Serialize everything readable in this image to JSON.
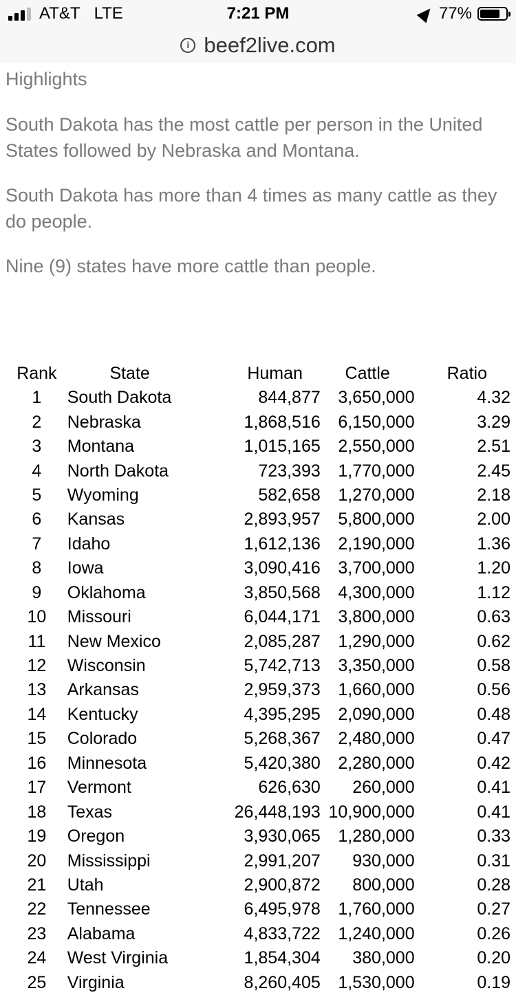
{
  "status_bar": {
    "carrier": "AT&T",
    "network": "LTE",
    "time": "7:21 PM",
    "battery_percent": "77%",
    "battery_level": 0.77
  },
  "url_bar": {
    "domain": "beef2live.com"
  },
  "article": {
    "heading": "Highlights",
    "paragraphs": [
      "South Dakota has the most cattle per person in the United States followed by Nebraska and Montana.",
      "South Dakota has more than 4 times as many cattle as they do people.",
      "Nine (9) states have more cattle than people."
    ]
  },
  "table": {
    "headers": {
      "rank": "Rank",
      "state": "State",
      "human": "Human",
      "cattle": "Cattle",
      "ratio": "Ratio"
    },
    "rows": [
      {
        "rank": "1",
        "state": "South Dakota",
        "human": "844,877",
        "cattle": "3,650,000",
        "ratio": "4.32"
      },
      {
        "rank": "2",
        "state": "Nebraska",
        "human": "1,868,516",
        "cattle": "6,150,000",
        "ratio": "3.29"
      },
      {
        "rank": "3",
        "state": "Montana",
        "human": "1,015,165",
        "cattle": "2,550,000",
        "ratio": "2.51"
      },
      {
        "rank": "4",
        "state": "North Dakota",
        "human": "723,393",
        "cattle": "1,770,000",
        "ratio": "2.45"
      },
      {
        "rank": "5",
        "state": "Wyoming",
        "human": "582,658",
        "cattle": "1,270,000",
        "ratio": "2.18"
      },
      {
        "rank": "6",
        "state": "Kansas",
        "human": "2,893,957",
        "cattle": "5,800,000",
        "ratio": "2.00"
      },
      {
        "rank": "7",
        "state": "Idaho",
        "human": "1,612,136",
        "cattle": "2,190,000",
        "ratio": "1.36"
      },
      {
        "rank": "8",
        "state": "Iowa",
        "human": "3,090,416",
        "cattle": "3,700,000",
        "ratio": "1.20"
      },
      {
        "rank": "9",
        "state": "Oklahoma",
        "human": "3,850,568",
        "cattle": "4,300,000",
        "ratio": "1.12"
      },
      {
        "rank": "10",
        "state": "Missouri",
        "human": "6,044,171",
        "cattle": "3,800,000",
        "ratio": "0.63"
      },
      {
        "rank": "11",
        "state": "New Mexico",
        "human": "2,085,287",
        "cattle": "1,290,000",
        "ratio": "0.62"
      },
      {
        "rank": "12",
        "state": "Wisconsin",
        "human": "5,742,713",
        "cattle": "3,350,000",
        "ratio": "0.58"
      },
      {
        "rank": "13",
        "state": "Arkansas",
        "human": "2,959,373",
        "cattle": "1,660,000",
        "ratio": "0.56"
      },
      {
        "rank": "14",
        "state": "Kentucky",
        "human": "4,395,295",
        "cattle": "2,090,000",
        "ratio": "0.48"
      },
      {
        "rank": "15",
        "state": "Colorado",
        "human": "5,268,367",
        "cattle": "2,480,000",
        "ratio": "0.47"
      },
      {
        "rank": "16",
        "state": "Minnesota",
        "human": "5,420,380",
        "cattle": "2,280,000",
        "ratio": "0.42"
      },
      {
        "rank": "17",
        "state": "Vermont",
        "human": "626,630",
        "cattle": "260,000",
        "ratio": "0.41"
      },
      {
        "rank": "18",
        "state": "Texas",
        "human": "26,448,193",
        "cattle": "10,900,000",
        "ratio": "0.41"
      },
      {
        "rank": "19",
        "state": "Oregon",
        "human": "3,930,065",
        "cattle": "1,280,000",
        "ratio": "0.33"
      },
      {
        "rank": "20",
        "state": "Mississippi",
        "human": "2,991,207",
        "cattle": "930,000",
        "ratio": "0.31"
      },
      {
        "rank": "21",
        "state": "Utah",
        "human": "2,900,872",
        "cattle": "800,000",
        "ratio": "0.28"
      },
      {
        "rank": "22",
        "state": "Tennessee",
        "human": "6,495,978",
        "cattle": "1,760,000",
        "ratio": "0.27"
      },
      {
        "rank": "23",
        "state": "Alabama",
        "human": "4,833,722",
        "cattle": "1,240,000",
        "ratio": "0.26"
      },
      {
        "rank": "24",
        "state": "West Virginia",
        "human": "1,854,304",
        "cattle": "380,000",
        "ratio": "0.20"
      },
      {
        "rank": "25",
        "state": "Virginia",
        "human": "8,260,405",
        "cattle": "1,530,000",
        "ratio": "0.19"
      }
    ]
  },
  "icons": {
    "signal": "signal-bars-icon",
    "location": "location-arrow-icon",
    "battery": "battery-icon",
    "info": "info-icon"
  }
}
